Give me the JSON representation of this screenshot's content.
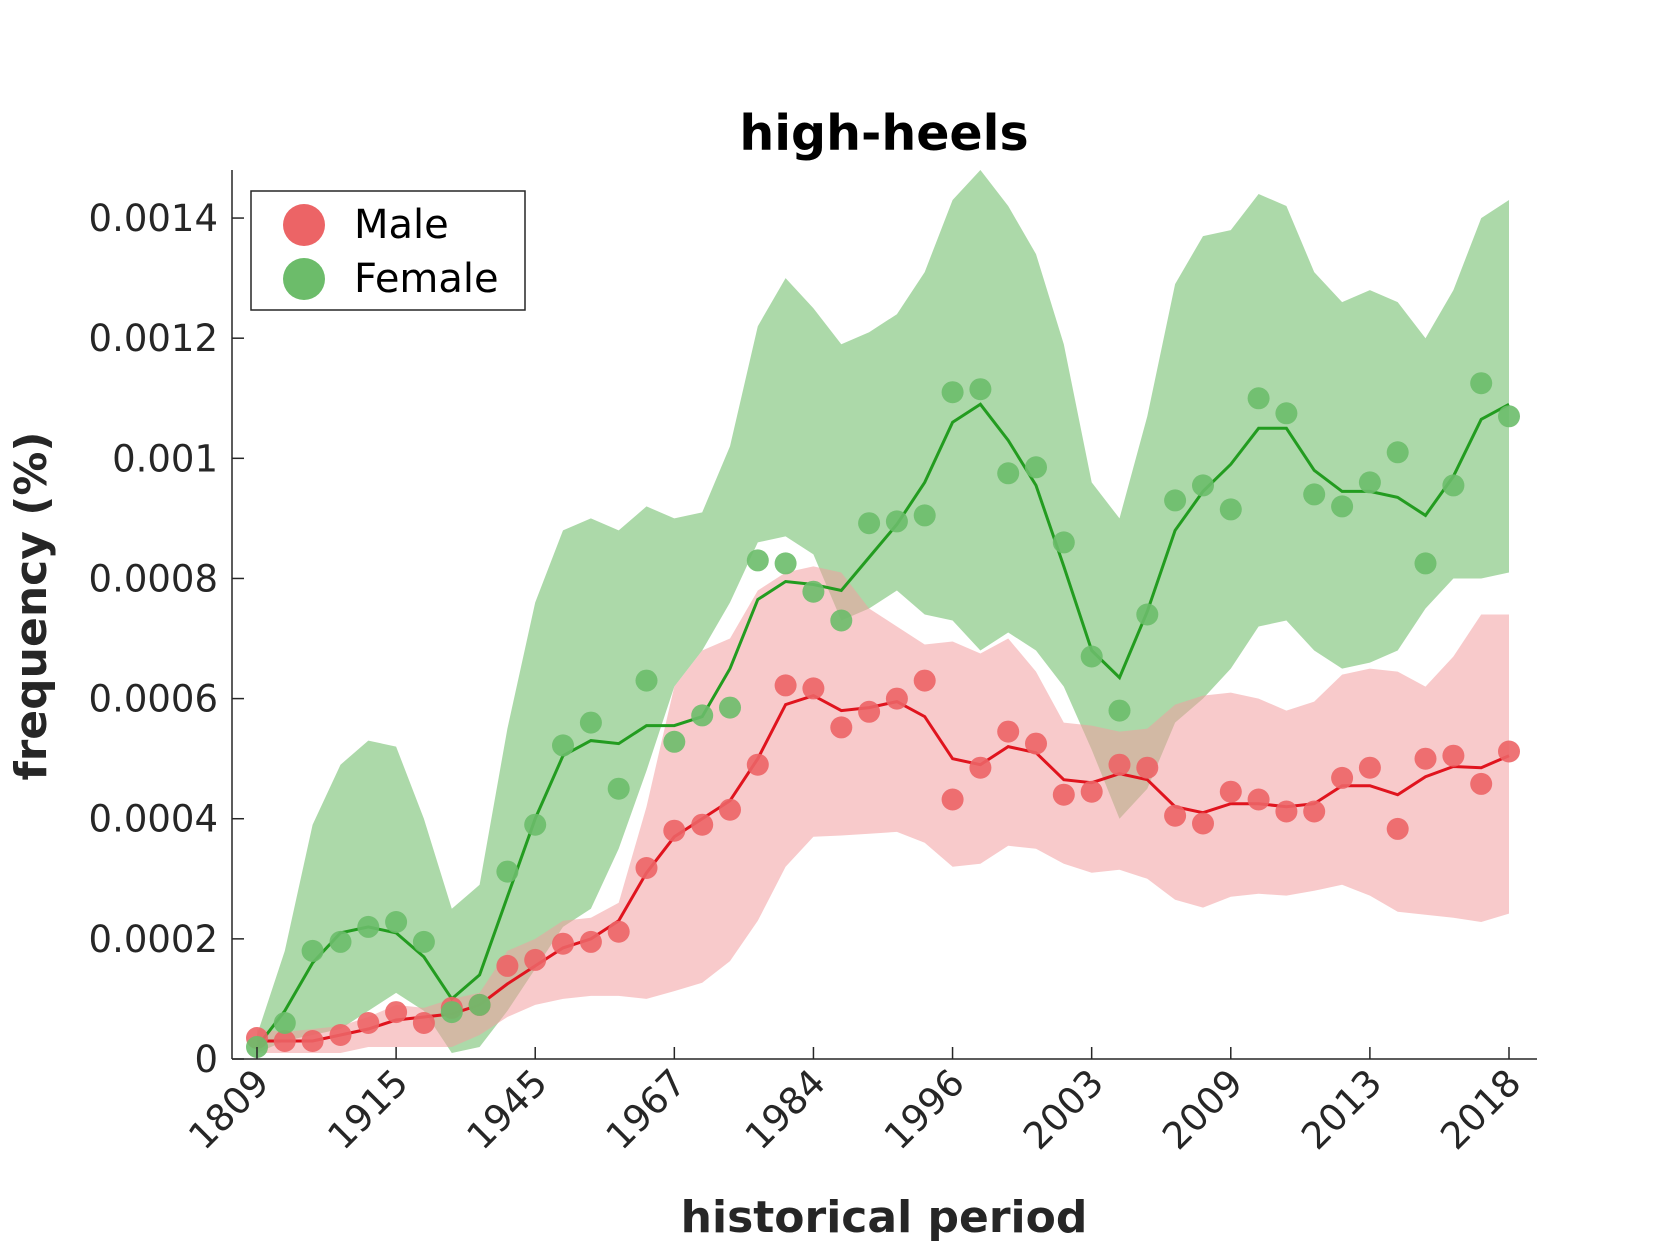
{
  "chart_data": {
    "type": "line",
    "title": "high-heels",
    "xlabel": "historical period",
    "ylabel": "frequency (%)",
    "x_tick_labels": [
      "1809",
      "1915",
      "1945",
      "1967",
      "1984",
      "1996",
      "2003",
      "2009",
      "2013",
      "2018"
    ],
    "y_ticks": [
      0,
      0.0002,
      0.0004,
      0.0006,
      0.0008,
      0.001,
      0.0012,
      0.0014
    ],
    "y_tick_labels": [
      "0",
      "0.0002",
      "0.0004",
      "0.0006",
      "0.0008",
      "0.001",
      "0.0012",
      "0.0014"
    ],
    "ylim": [
      0,
      0.00148
    ],
    "n_points": 46,
    "grid": false,
    "legend_position": "top-left",
    "series": [
      {
        "name": "Male",
        "color": "#e0141e",
        "marker_color": "#ec6466",
        "band_color": "#f29ea0",
        "points": [
          3.5e-05,
          3e-05,
          3e-05,
          4e-05,
          6e-05,
          7.8e-05,
          6e-05,
          8.5e-05,
          9e-05,
          0.000155,
          0.000165,
          0.000192,
          0.000195,
          0.000212,
          0.000318,
          0.00038,
          0.00039,
          0.000415,
          0.00049,
          0.000622,
          0.000617,
          0.000552,
          0.000578,
          0.0006,
          0.00063,
          0.000432,
          0.000485,
          0.000545,
          0.000525,
          0.00044,
          0.000445,
          0.00049,
          0.000485,
          0.000405,
          0.000392,
          0.000445,
          0.000432,
          0.000412,
          0.000412,
          0.000468,
          0.000485,
          0.000383,
          0.0005,
          0.000505,
          0.000458,
          0.000512
        ],
        "line": [
          3e-05,
          3e-05,
          3e-05,
          4e-05,
          5e-05,
          6.5e-05,
          7e-05,
          7.5e-05,
          9e-05,
          0.000125,
          0.000155,
          0.000185,
          0.0002,
          0.00023,
          0.00031,
          0.00037,
          0.0004,
          0.00043,
          0.0005,
          0.00059,
          0.000605,
          0.00058,
          0.000585,
          0.000595,
          0.00057,
          0.0005,
          0.00049,
          0.00052,
          0.00051,
          0.000465,
          0.00046,
          0.000475,
          0.000465,
          0.00042,
          0.00041,
          0.000425,
          0.000425,
          0.00042,
          0.000425,
          0.000455,
          0.000455,
          0.00044,
          0.00047,
          0.000487,
          0.000485,
          0.000505
        ],
        "upper": [
          5e-05,
          4.5e-05,
          5e-05,
          5.5e-05,
          7e-05,
          9e-05,
          8.5e-05,
          0.0001,
          0.00011,
          0.00018,
          0.0002,
          0.00023,
          0.000235,
          0.00026,
          0.00042,
          0.00062,
          0.00068,
          0.0007,
          0.00078,
          0.00081,
          0.00082,
          0.00081,
          0.00075,
          0.00072,
          0.00069,
          0.000695,
          0.000675,
          0.0007,
          0.000645,
          0.00056,
          0.000555,
          0.000545,
          0.00055,
          0.00059,
          0.000605,
          0.00061,
          0.0006,
          0.00058,
          0.000595,
          0.00064,
          0.00065,
          0.000645,
          0.00062,
          0.00067,
          0.00074,
          0.00074
        ],
        "lower": [
          1e-05,
          1e-05,
          1e-05,
          1e-05,
          2e-05,
          2e-05,
          2e-05,
          2e-05,
          4e-05,
          7e-05,
          9e-05,
          0.0001,
          0.000105,
          0.000105,
          0.0001,
          0.000113,
          0.000127,
          0.000163,
          0.00023,
          0.00032,
          0.00037,
          0.000372,
          0.000375,
          0.000378,
          0.00036,
          0.00032,
          0.000325,
          0.000355,
          0.00035,
          0.000325,
          0.00031,
          0.000315,
          0.0003,
          0.000265,
          0.000252,
          0.00027,
          0.000275,
          0.000272,
          0.00028,
          0.00029,
          0.000272,
          0.000245,
          0.00024,
          0.000235,
          0.000228,
          0.000242
        ]
      },
      {
        "name": "Female",
        "color": "#239c20",
        "marker_color": "#6cbc6a",
        "band_color": "#9ed29a",
        "points": [
          2e-05,
          6e-05,
          0.00018,
          0.000195,
          0.00022,
          0.000228,
          0.000195,
          7.8e-05,
          9e-05,
          0.000312,
          0.00039,
          0.000522,
          0.00056,
          0.00045,
          0.00063,
          0.000528,
          0.000572,
          0.000585,
          0.00083,
          0.000825,
          0.000778,
          0.00073,
          0.000892,
          0.000895,
          0.000905,
          0.00111,
          0.001115,
          0.000975,
          0.000985,
          0.00086,
          0.00067,
          0.00058,
          0.00074,
          0.00093,
          0.000955,
          0.000915,
          0.0011,
          0.001075,
          0.00094,
          0.00092,
          0.00096,
          0.00101,
          0.000825,
          0.000955,
          0.001125,
          0.00107
        ],
        "line": [
          2e-05,
          8e-05,
          0.00016,
          0.00021,
          0.00022,
          0.00021,
          0.00017,
          0.0001,
          0.00014,
          0.00027,
          0.0004,
          0.000505,
          0.00053,
          0.000525,
          0.000555,
          0.000555,
          0.00057,
          0.00065,
          0.000765,
          0.000795,
          0.00079,
          0.00078,
          0.000835,
          0.00089,
          0.00096,
          0.00106,
          0.00109,
          0.00103,
          0.000955,
          0.00082,
          0.00068,
          0.000635,
          0.000745,
          0.00088,
          0.000945,
          0.00099,
          0.00105,
          0.00105,
          0.00098,
          0.000945,
          0.000945,
          0.000935,
          0.000905,
          0.00097,
          0.001065,
          0.00109
        ],
        "upper": [
          4e-05,
          0.00018,
          0.00039,
          0.00049,
          0.00053,
          0.00052,
          0.0004,
          0.00025,
          0.00029,
          0.00055,
          0.00076,
          0.00088,
          0.0009,
          0.00088,
          0.00092,
          0.0009,
          0.00091,
          0.00102,
          0.00122,
          0.0013,
          0.00125,
          0.00119,
          0.00121,
          0.00124,
          0.00131,
          0.00143,
          0.00148,
          0.00142,
          0.00134,
          0.00119,
          0.00096,
          0.0009,
          0.00107,
          0.00129,
          0.00137,
          0.00138,
          0.00144,
          0.00142,
          0.00131,
          0.00126,
          0.00128,
          0.00126,
          0.0012,
          0.00128,
          0.0014,
          0.00143
        ],
        "lower": [
          1e-05,
          3e-05,
          4e-05,
          5e-05,
          8e-05,
          0.00011,
          8e-05,
          1e-05,
          2e-05,
          8e-05,
          0.00015,
          0.00022,
          0.00025,
          0.00035,
          0.00048,
          0.00062,
          0.00068,
          0.00076,
          0.00086,
          0.00087,
          0.00084,
          0.00073,
          0.00075,
          0.00078,
          0.00074,
          0.00073,
          0.00068,
          0.00071,
          0.00068,
          0.00062,
          0.000515,
          0.0004,
          0.00045,
          0.00056,
          0.0006,
          0.00065,
          0.00072,
          0.00073,
          0.00068,
          0.00065,
          0.00066,
          0.00068,
          0.00075,
          0.0008,
          0.0008,
          0.00081
        ]
      }
    ]
  }
}
